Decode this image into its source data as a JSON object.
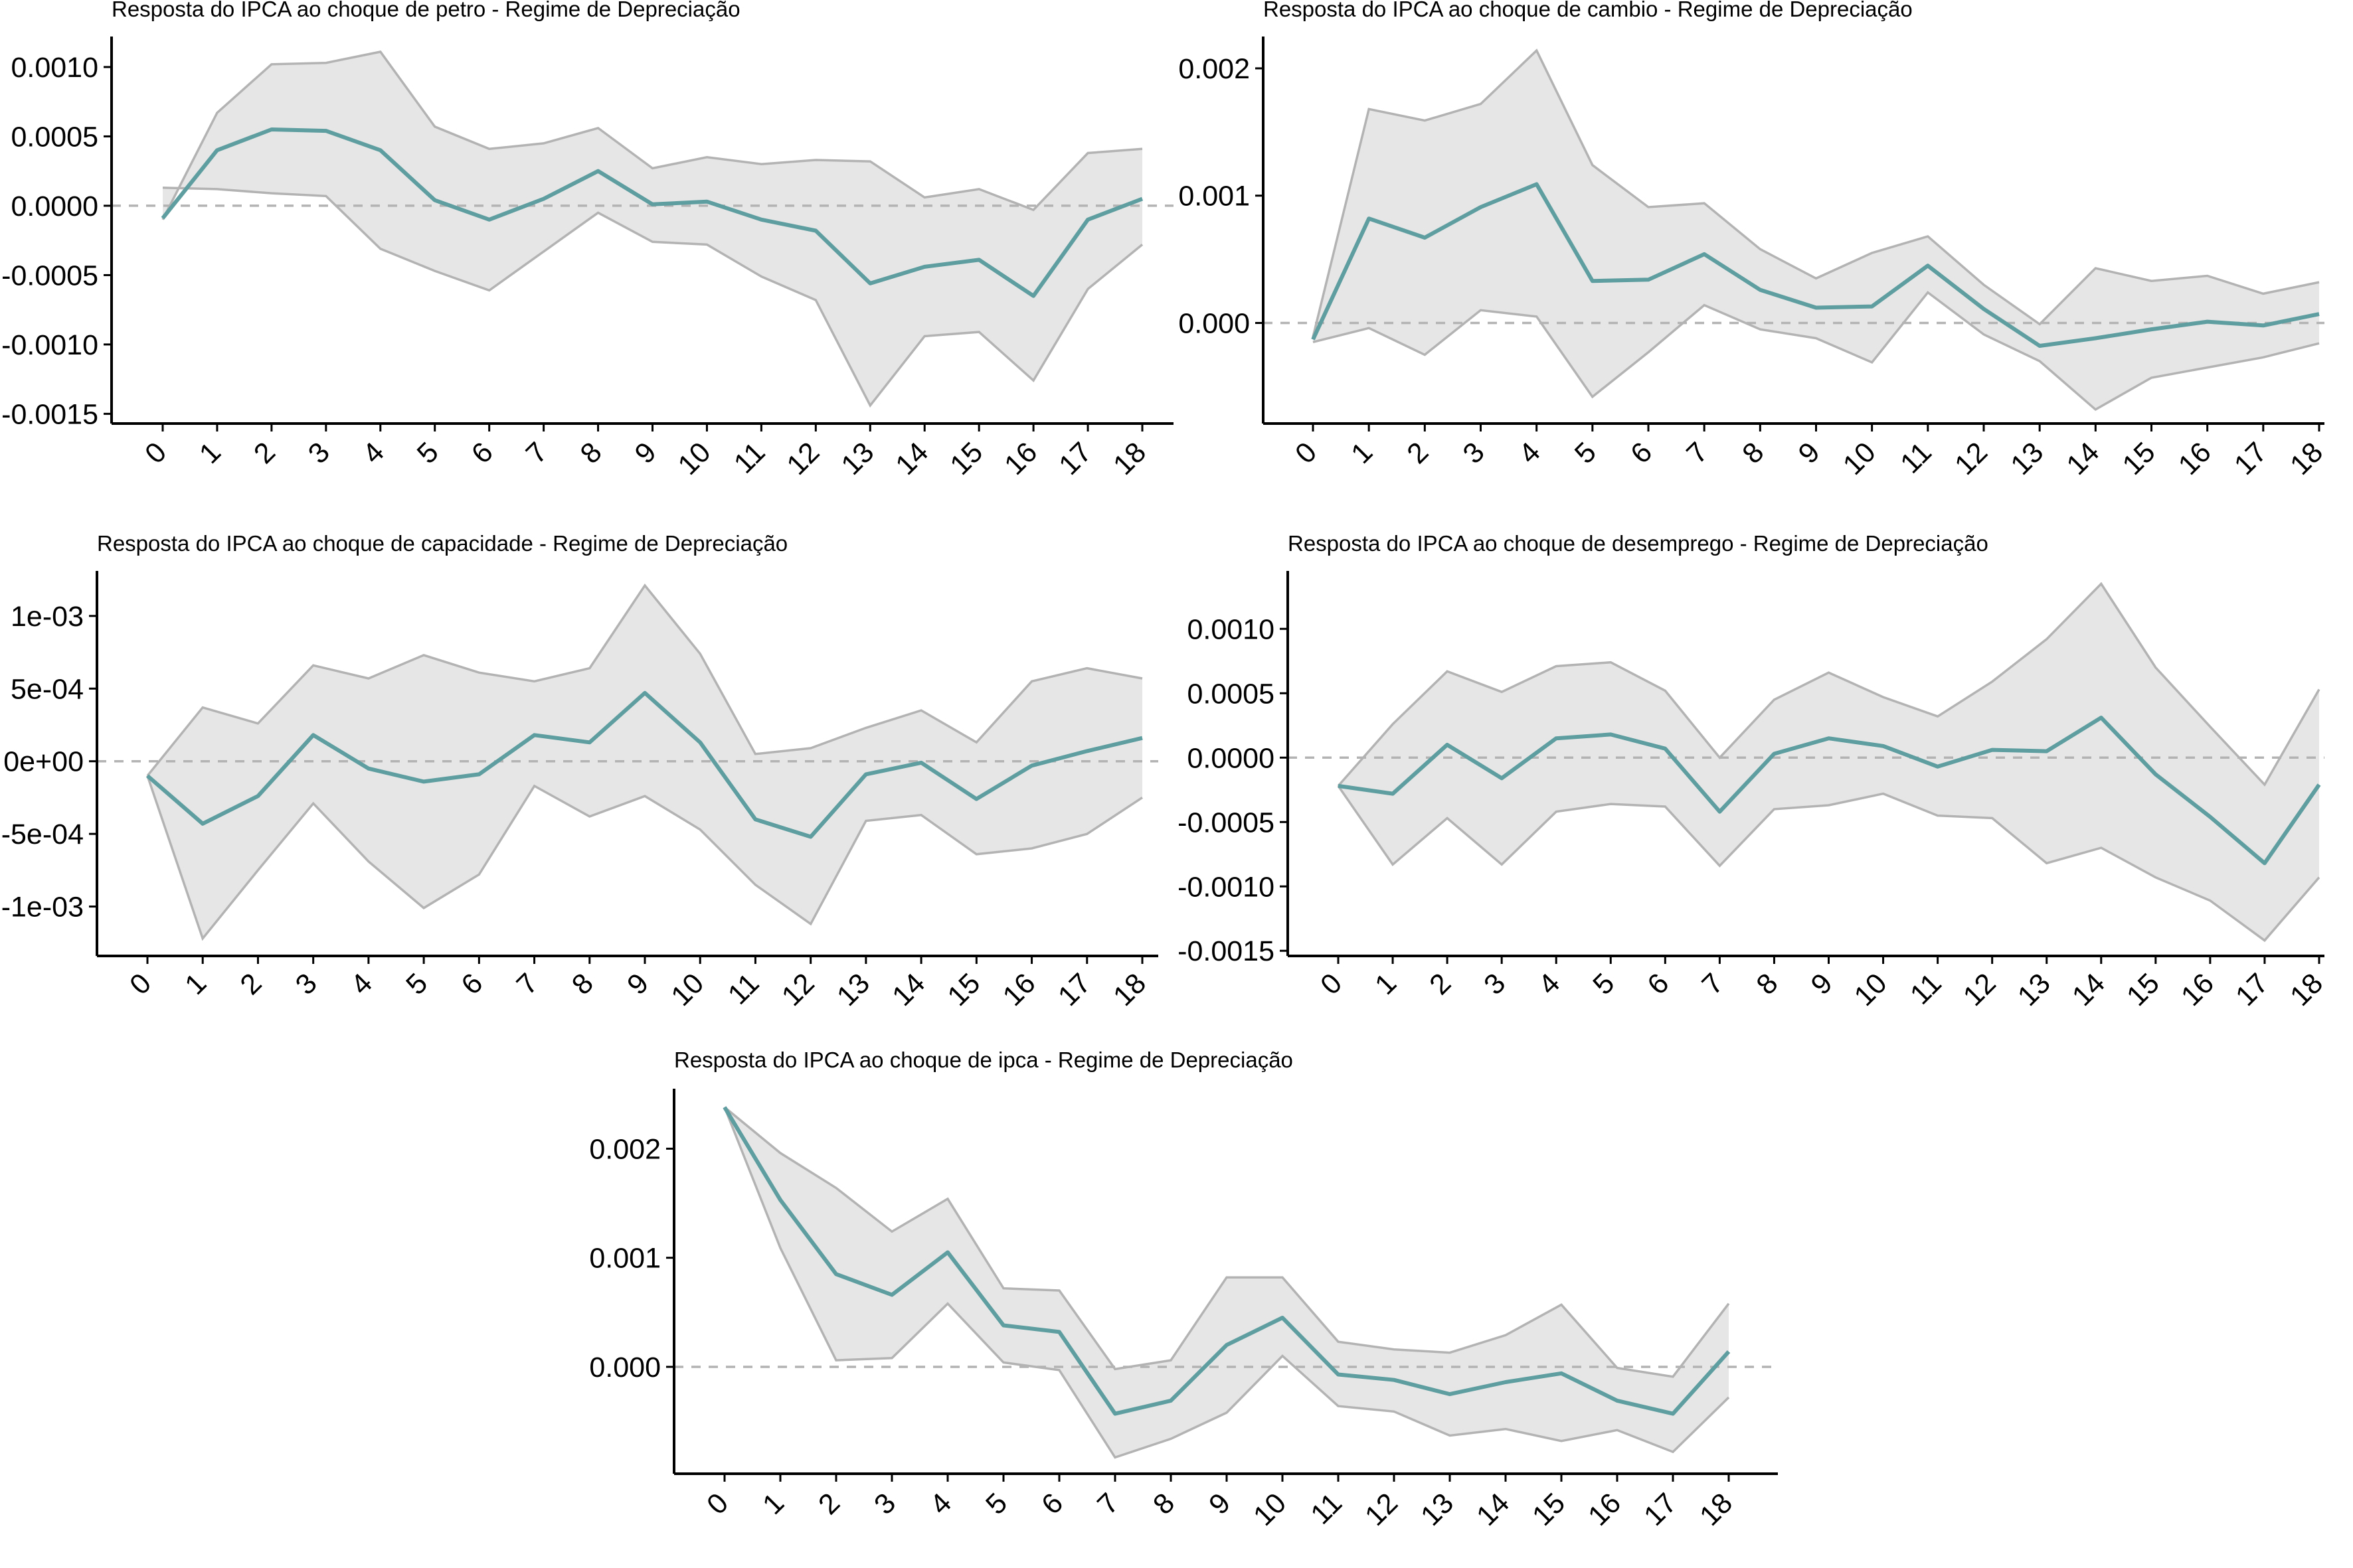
{
  "colors": {
    "line": "#5f9ea0",
    "band_fill": "#e6e6e6",
    "band_edge": "#b3b3b3",
    "zero_line": "#b3b3b3",
    "axis": "#000000"
  },
  "chart_data": [
    {
      "type": "line",
      "title": "Resposta do IPCA ao choque de petro -  Regime de Depreciação",
      "xlabel": "",
      "ylabel": "",
      "x": [
        0,
        1,
        2,
        3,
        4,
        5,
        6,
        7,
        8,
        9,
        10,
        11,
        12,
        13,
        14,
        15,
        16,
        17,
        18
      ],
      "x_tick_labels": [
        "0",
        "1",
        "2",
        "3",
        "4",
        "5",
        "6",
        "7",
        "8",
        "9",
        "10",
        "11",
        "12",
        "13",
        "14",
        "15",
        "16",
        "17",
        "18"
      ],
      "y_tick_values": [
        -0.0015,
        -0.001,
        -0.0005,
        0,
        0.0005,
        0.001
      ],
      "y_tick_labels": [
        "-0.0015",
        "-0.0010",
        "-0.0005",
        "0.0000",
        "0.0005",
        "0.0010"
      ],
      "ylim": [
        -0.00157,
        0.00122
      ],
      "series": [
        {
          "values": [
            -9e-05,
            0.0004,
            0.00055,
            0.00054,
            0.0004,
            4e-05,
            -0.0001,
            5e-05,
            0.00025,
            1e-05,
            3e-05,
            -0.0001,
            -0.00018,
            -0.00056,
            -0.00044,
            -0.00039,
            -0.00065,
            -0.0001,
            5e-05
          ]
        },
        {
          "values": [
            0.00013,
            0.00012,
            9e-05,
            7e-05,
            -0.00031,
            -0.00047,
            -0.00061,
            -0.00033,
            -5e-05,
            -0.00026,
            -0.00028,
            -0.00051,
            -0.00068,
            -0.00144,
            -0.00094,
            -0.00091,
            -0.00126,
            -0.0006,
            -0.00028
          ]
        },
        {
          "values": [
            -0.0001,
            0.00067,
            0.00102,
            0.00103,
            0.00111,
            0.00057,
            0.00041,
            0.00045,
            0.00056,
            0.00027,
            0.00035,
            0.0003,
            0.00033,
            0.00032,
            6e-05,
            0.00012,
            -3e-05,
            0.00038,
            0.00041
          ]
        }
      ],
      "hline": 0
    },
    {
      "type": "line",
      "title": "Resposta do IPCA ao choque de cambio -  Regime de Depreciação",
      "xlabel": "",
      "ylabel": "",
      "x": [
        0,
        1,
        2,
        3,
        4,
        5,
        6,
        7,
        8,
        9,
        10,
        11,
        12,
        13,
        14,
        15,
        16,
        17,
        18
      ],
      "x_tick_labels": [
        "0",
        "1",
        "2",
        "3",
        "4",
        "5",
        "6",
        "7",
        "8",
        "9",
        "10",
        "11",
        "12",
        "13",
        "14",
        "15",
        "16",
        "17",
        "18"
      ],
      "y_tick_values": [
        0,
        0.001,
        0.002
      ],
      "y_tick_labels": [
        "0.000",
        "0.001",
        "0.002"
      ],
      "ylim": [
        -0.00079,
        0.00225
      ],
      "series": [
        {
          "values": [
            -0.00013,
            0.00082,
            0.00067,
            0.00091,
            0.00109,
            0.00033,
            0.00034,
            0.00054,
            0.00026,
            0.00012,
            0.00013,
            0.00045,
            0.00011,
            -0.00018,
            -0.00012,
            -5e-05,
            1e-05,
            -2e-05,
            7e-05
          ]
        },
        {
          "values": [
            -0.00015,
            -4e-05,
            -0.00025,
            0.0001,
            5e-05,
            -0.00058,
            -0.00023,
            0.00014,
            -5e-05,
            -0.00012,
            -0.00031,
            0.00024,
            -9e-05,
            -0.0003,
            -0.00068,
            -0.00043,
            -0.00035,
            -0.00027,
            -0.00016
          ]
        },
        {
          "values": [
            -0.00011,
            0.00168,
            0.00159,
            0.00172,
            0.00214,
            0.00124,
            0.00091,
            0.00094,
            0.00058,
            0.00035,
            0.00055,
            0.00068,
            0.0003,
            -1e-05,
            0.00043,
            0.00033,
            0.00037,
            0.00023,
            0.00032
          ]
        }
      ],
      "hline": 0
    },
    {
      "type": "line",
      "title": "Resposta do IPCA ao choque de capacidade -  Regime de Depreciação",
      "xlabel": "",
      "ylabel": "",
      "x": [
        0,
        1,
        2,
        3,
        4,
        5,
        6,
        7,
        8,
        9,
        10,
        11,
        12,
        13,
        14,
        15,
        16,
        17,
        18
      ],
      "x_tick_labels": [
        "0",
        "1",
        "2",
        "3",
        "4",
        "5",
        "6",
        "7",
        "8",
        "9",
        "10",
        "11",
        "12",
        "13",
        "14",
        "15",
        "16",
        "17",
        "18"
      ],
      "y_tick_values": [
        -0.001,
        -0.0005,
        0,
        0.0005,
        0.001
      ],
      "y_tick_labels": [
        "-1e-03",
        "-5e-04",
        "0e+00",
        "5e-04",
        "1e-03"
      ],
      "ylim": [
        -0.00134,
        0.00131
      ],
      "series": [
        {
          "values": [
            -0.0001,
            -0.00043,
            -0.00024,
            0.00018,
            -5e-05,
            -0.00014,
            -9e-05,
            0.00018,
            0.00013,
            0.00047,
            0.00013,
            -0.0004,
            -0.00052,
            -9e-05,
            -1e-05,
            -0.00026,
            -3e-05,
            7e-05,
            0.00016
          ]
        },
        {
          "values": [
            -0.0001,
            -0.00122,
            -0.00075,
            -0.00029,
            -0.00069,
            -0.00101,
            -0.00078,
            -0.00017,
            -0.00038,
            -0.00024,
            -0.00047,
            -0.00085,
            -0.00112,
            -0.00041,
            -0.00037,
            -0.00064,
            -0.0006,
            -0.0005,
            -0.00025
          ]
        },
        {
          "values": [
            -0.0001,
            0.00037,
            0.00026,
            0.00066,
            0.00057,
            0.00073,
            0.00061,
            0.00055,
            0.00064,
            0.00121,
            0.00074,
            5e-05,
            9e-05,
            0.00023,
            0.00035,
            0.00013,
            0.00055,
            0.00064,
            0.00057
          ]
        }
      ],
      "hline": 0
    },
    {
      "type": "line",
      "title": "Resposta do IPCA ao choque de desemprego -  Regime de Depreciação",
      "xlabel": "",
      "ylabel": "",
      "x": [
        0,
        1,
        2,
        3,
        4,
        5,
        6,
        7,
        8,
        9,
        10,
        11,
        12,
        13,
        14,
        15,
        16,
        17,
        18
      ],
      "x_tick_labels": [
        "0",
        "1",
        "2",
        "3",
        "4",
        "5",
        "6",
        "7",
        "8",
        "9",
        "10",
        "11",
        "12",
        "13",
        "14",
        "15",
        "16",
        "17",
        "18"
      ],
      "y_tick_values": [
        -0.0015,
        -0.001,
        -0.0005,
        0,
        0.0005,
        0.001
      ],
      "y_tick_labels": [
        "-0.0015",
        "-0.0010",
        "-0.0005",
        "0.0000",
        "0.0005",
        "0.0010"
      ],
      "ylim": [
        -0.00154,
        0.00145
      ],
      "series": [
        {
          "values": [
            -0.00022,
            -0.00028,
            0.0001,
            -0.00016,
            0.00015,
            0.00018,
            7e-05,
            -0.00042,
            3e-05,
            0.00015,
            9e-05,
            -7e-05,
            6e-05,
            5e-05,
            0.00031,
            -0.00013,
            -0.00046,
            -0.00082,
            -0.00021
          ]
        },
        {
          "values": [
            -0.00022,
            -0.00083,
            -0.00047,
            -0.00083,
            -0.00042,
            -0.00036,
            -0.00038,
            -0.00084,
            -0.0004,
            -0.00037,
            -0.00028,
            -0.00045,
            -0.00047,
            -0.00082,
            -0.0007,
            -0.00093,
            -0.00111,
            -0.00142,
            -0.00093
          ]
        },
        {
          "values": [
            -0.00022,
            0.00026,
            0.00067,
            0.00051,
            0.00071,
            0.00074,
            0.00052,
            0,
            0.00045,
            0.00066,
            0.00047,
            0.00032,
            0.00059,
            0.00092,
            0.00135,
            0.0007,
            0.00024,
            -0.00021,
            0.00053
          ]
        }
      ],
      "hline": 0
    },
    {
      "type": "line",
      "title": "Resposta do IPCA ao choque de ipca -  Regime de Depreciação",
      "xlabel": "",
      "ylabel": "",
      "x": [
        0,
        1,
        2,
        3,
        4,
        5,
        6,
        7,
        8,
        9,
        10,
        11,
        12,
        13,
        14,
        15,
        16,
        17,
        18
      ],
      "x_tick_labels": [
        "0",
        "1",
        "2",
        "3",
        "4",
        "5",
        "6",
        "7",
        "8",
        "9",
        "10",
        "11",
        "12",
        "13",
        "14",
        "15",
        "16",
        "17",
        "18"
      ],
      "y_tick_values": [
        0,
        0.001,
        0.002
      ],
      "y_tick_labels": [
        "0.000",
        "0.001",
        "0.002"
      ],
      "ylim": [
        -0.00098,
        0.00255
      ],
      "series": [
        {
          "values": [
            0.00238,
            0.00153,
            0.00085,
            0.00066,
            0.00105,
            0.00038,
            0.00032,
            -0.00043,
            -0.00031,
            0.0002,
            0.00045,
            -7e-05,
            -0.00012,
            -0.00025,
            -0.00014,
            -6e-05,
            -0.00031,
            -0.00043,
            0.00014
          ]
        },
        {
          "values": [
            0.00238,
            0.00109,
            6e-05,
            8e-05,
            0.00058,
            4e-05,
            -3e-05,
            -0.00083,
            -0.00066,
            -0.00042,
            0.0001,
            -0.00036,
            -0.00041,
            -0.00063,
            -0.00057,
            -0.00068,
            -0.00058,
            -0.00078,
            -0.00028
          ]
        },
        {
          "values": [
            0.00238,
            0.00196,
            0.00164,
            0.00124,
            0.00154,
            0.00072,
            0.0007,
            -2e-05,
            6e-05,
            0.00082,
            0.00082,
            0.00023,
            0.00016,
            0.00013,
            0.00029,
            0.00057,
            -1e-05,
            -9e-05,
            0.00058
          ]
        }
      ],
      "hline": 0
    }
  ]
}
